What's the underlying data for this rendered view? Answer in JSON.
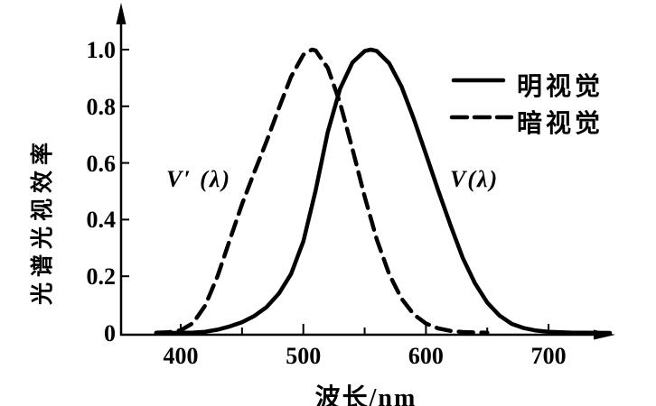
{
  "chart_data": {
    "type": "line",
    "title": "",
    "xlabel": "波长/nm",
    "ylabel": "光谱光视效率",
    "xlim": [
      355,
      755
    ],
    "ylim": [
      0,
      1.05
    ],
    "x_ticks": [
      400,
      500,
      600,
      700
    ],
    "x_tick_labels": [
      "400",
      "500",
      "600",
      "700"
    ],
    "x_minor_ticks": [
      450,
      550,
      650
    ],
    "y_ticks": [
      0,
      0.2,
      0.4,
      0.6,
      0.8,
      1.0
    ],
    "y_tick_labels": [
      "0",
      "0.2",
      "0.4",
      "0.6",
      "0.8",
      "1.0"
    ],
    "grid": false,
    "legend_position": "upper right",
    "line_color": "#000000",
    "series": [
      {
        "name": "明视觉",
        "symbol": "V(λ)",
        "line_style": "solid",
        "color": "#000000",
        "peak_nm": 555,
        "x": [
          380,
          390,
          400,
          410,
          420,
          430,
          440,
          450,
          460,
          470,
          480,
          490,
          500,
          510,
          520,
          530,
          540,
          550,
          555,
          560,
          570,
          580,
          590,
          600,
          610,
          620,
          630,
          640,
          650,
          660,
          670,
          680,
          690,
          700,
          710,
          720,
          730,
          740,
          750
        ],
        "values": [
          0,
          0.0001,
          0.0004,
          0.0012,
          0.004,
          0.0116,
          0.023,
          0.038,
          0.06,
          0.091,
          0.139,
          0.208,
          0.323,
          0.503,
          0.71,
          0.862,
          0.954,
          0.995,
          1.0,
          0.995,
          0.952,
          0.87,
          0.757,
          0.631,
          0.503,
          0.381,
          0.265,
          0.175,
          0.107,
          0.061,
          0.032,
          0.017,
          0.0082,
          0.0041,
          0.0021,
          0.001,
          0.0005,
          0.0002,
          0.0001
        ]
      },
      {
        "name": "暗视觉",
        "symbol": "V′ (λ)",
        "line_style": "dashed",
        "color": "#000000",
        "peak_nm": 507,
        "x": [
          380,
          390,
          400,
          410,
          420,
          430,
          440,
          450,
          460,
          470,
          480,
          490,
          500,
          507,
          510,
          520,
          530,
          540,
          550,
          560,
          570,
          580,
          590,
          600,
          610,
          620,
          630,
          640,
          650
        ],
        "values": [
          0.0006,
          0.0022,
          0.0093,
          0.0348,
          0.0966,
          0.1998,
          0.3281,
          0.455,
          0.567,
          0.676,
          0.793,
          0.904,
          0.982,
          1.0,
          0.997,
          0.935,
          0.811,
          0.65,
          0.481,
          0.3288,
          0.2076,
          0.1212,
          0.0655,
          0.0332,
          0.0159,
          0.0074,
          0.0033,
          0.0015,
          0.0007
        ]
      }
    ]
  }
}
